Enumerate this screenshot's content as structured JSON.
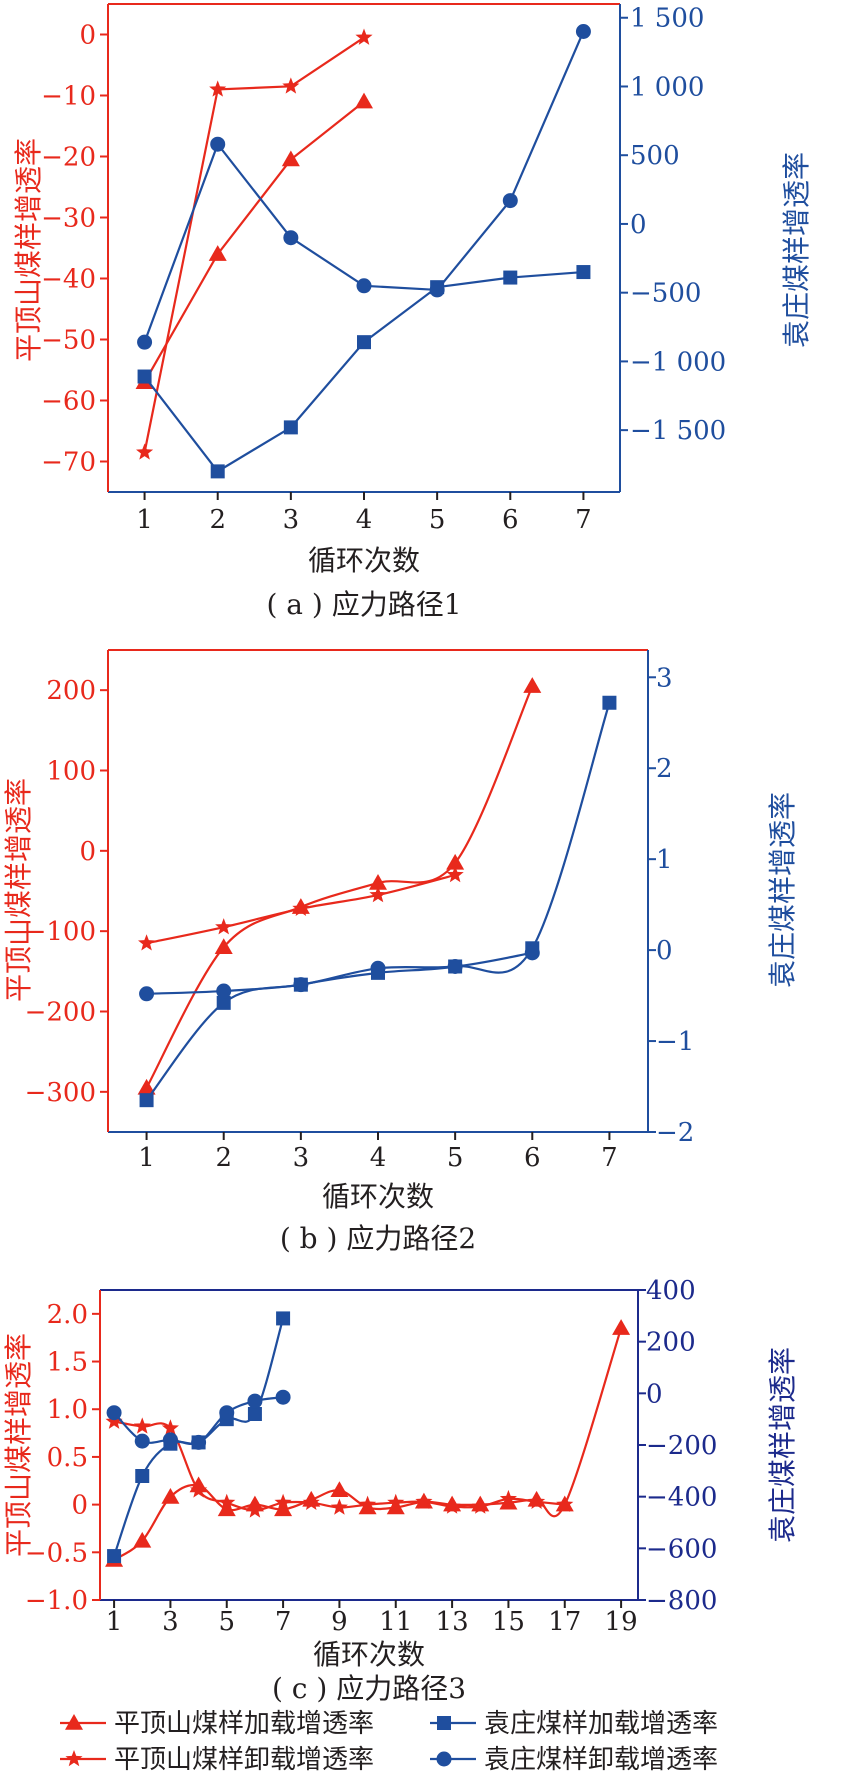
{
  "chart_data": [
    {
      "type": "line",
      "panel": "a",
      "caption": "( a ) 应力路径1",
      "xlabel": "循环次数",
      "ylabel_left": "平顶山煤样增透率",
      "ylabel_right": "袁庄煤样增透率",
      "x_ticks": [
        "1",
        "2",
        "3",
        "4",
        "5",
        "6",
        "7"
      ],
      "yleft_ticks": [
        "0",
        "−10",
        "−20",
        "−30",
        "−40",
        "−50",
        "−60",
        "−70"
      ],
      "yright_ticks": [
        "1 500",
        "1 000",
        "500",
        "0",
        "−500",
        "−1 000",
        "−1 500"
      ],
      "xlim": [
        0.5,
        7.5
      ],
      "ylim_left": [
        -75,
        5
      ],
      "ylim_right": [
        -1950,
        1600
      ],
      "series": [
        {
          "name": "平顶山煤样加载增透率",
          "axis": "left",
          "color": "#e8291c",
          "marker": "triangle",
          "x": [
            1,
            2,
            3,
            4
          ],
          "values": [
            -57,
            -36,
            -20.5,
            -11
          ]
        },
        {
          "name": "平顶山煤样卸载增透率",
          "axis": "left",
          "color": "#e8291c",
          "marker": "star",
          "x": [
            1,
            2,
            3,
            4
          ],
          "values": [
            -68.5,
            -9,
            -8.5,
            -0.5
          ]
        },
        {
          "name": "袁庄煤样加载增透率",
          "axis": "right",
          "color": "#1f4e9e",
          "marker": "square",
          "x": [
            1,
            2,
            3,
            4,
            5,
            6,
            7
          ],
          "values": [
            -1110,
            -1800,
            -1480,
            -860,
            -460,
            -390,
            -350
          ]
        },
        {
          "name": "袁庄煤样卸载增透率",
          "axis": "right",
          "color": "#1f4e9e",
          "marker": "circle",
          "x": [
            1,
            2,
            3,
            4,
            5,
            6,
            7
          ],
          "values": [
            -860,
            580,
            -100,
            -450,
            -480,
            170,
            1400
          ]
        }
      ]
    },
    {
      "type": "line",
      "panel": "b",
      "caption": "( b ) 应力路径2",
      "xlabel": "循环次数",
      "ylabel_left": "平顶山煤样增透率",
      "ylabel_right": "袁庄煤样增透率",
      "x_ticks": [
        "1",
        "2",
        "3",
        "4",
        "5",
        "6",
        "7"
      ],
      "yleft_ticks": [
        "200",
        "100",
        "0",
        "−100",
        "−200",
        "−300"
      ],
      "yright_ticks": [
        "3",
        "2",
        "1",
        "0",
        "−1",
        "−2"
      ],
      "xlim": [
        0.5,
        7.5
      ],
      "ylim_left": [
        -350,
        250
      ],
      "ylim_right": [
        -2,
        3.3
      ],
      "series": [
        {
          "name": "平顶山煤样加载增透率",
          "axis": "left",
          "color": "#e8291c",
          "marker": "triangle",
          "x": [
            1,
            2,
            3,
            4,
            5,
            6
          ],
          "values": [
            -295,
            -120,
            -70,
            -40,
            -15,
            205
          ]
        },
        {
          "name": "平顶山煤样卸载增透率",
          "axis": "left",
          "color": "#e8291c",
          "marker": "star",
          "x": [
            1,
            2,
            3,
            4,
            5
          ],
          "values": [
            -115,
            -95,
            -72,
            -55,
            -30
          ]
        },
        {
          "name": "袁庄煤样加载增透率",
          "axis": "right",
          "color": "#1f4e9e",
          "marker": "square",
          "x": [
            1,
            2,
            3,
            4,
            5,
            6,
            7
          ],
          "values": [
            -1.65,
            -0.58,
            -0.38,
            -0.25,
            -0.18,
            0.02,
            2.72
          ]
        },
        {
          "name": "袁庄煤样卸载增透率",
          "axis": "right",
          "color": "#1f4e9e",
          "marker": "circle",
          "x": [
            1,
            2,
            3,
            4,
            5,
            6
          ],
          "values": [
            -0.48,
            -0.45,
            -0.38,
            -0.2,
            -0.18,
            -0.03
          ]
        }
      ]
    },
    {
      "type": "line",
      "panel": "c",
      "caption": "( c ) 应力路径3",
      "xlabel": "循环次数",
      "ylabel_left": "平顶山煤样增透率",
      "ylabel_right": "袁庄煤样增透率",
      "x_ticks": [
        "1",
        "3",
        "5",
        "7",
        "9",
        "11",
        "13",
        "15",
        "17",
        "19"
      ],
      "yleft_ticks": [
        "2.0",
        "1.5",
        "1.0",
        "0.5",
        "0",
        "−0.5",
        "−1.0"
      ],
      "yright_ticks": [
        "400",
        "200",
        "0",
        "−200",
        "−400",
        "−600",
        "−800"
      ],
      "xlim": [
        0.5,
        19.6
      ],
      "ylim_left": [
        -1.0,
        2.25
      ],
      "ylim_right": [
        -800,
        400
      ],
      "series": [
        {
          "name": "平顶山煤样加载增透率",
          "axis": "left",
          "color": "#e8291c",
          "marker": "triangle",
          "x": [
            1,
            2,
            3,
            4,
            5,
            6,
            7,
            8,
            9,
            10,
            11,
            12,
            13,
            14,
            15,
            16,
            17,
            19
          ],
          "values": [
            -0.58,
            -0.38,
            0.08,
            0.2,
            -0.05,
            0.0,
            -0.05,
            0.05,
            0.15,
            -0.03,
            -0.03,
            0.03,
            0.0,
            0.0,
            0.02,
            0.05,
            0.0,
            1.85
          ]
        },
        {
          "name": "平顶山煤样卸载增透率",
          "axis": "left",
          "color": "#e8291c",
          "marker": "star",
          "x": [
            1,
            2,
            3,
            4,
            5,
            6,
            7,
            8,
            9,
            10,
            11,
            12,
            13,
            14,
            15,
            16,
            17
          ],
          "values": [
            0.87,
            0.82,
            0.8,
            0.15,
            0.02,
            -0.06,
            0.02,
            0.02,
            -0.03,
            0.0,
            0.02,
            0.03,
            -0.02,
            -0.02,
            0.06,
            0.03,
            0.0
          ]
        },
        {
          "name": "袁庄煤样加载增透率",
          "axis": "right",
          "color": "#1f4e9e",
          "marker": "square",
          "x": [
            1,
            2,
            3,
            4,
            5,
            6,
            7
          ],
          "values": [
            -630,
            -320,
            -195,
            -190,
            -100,
            -80,
            290
          ]
        },
        {
          "name": "袁庄煤样卸载增透率",
          "axis": "right",
          "color": "#1f4e9e",
          "marker": "circle",
          "x": [
            1,
            2,
            3,
            4,
            5,
            6,
            7
          ],
          "values": [
            -75,
            -185,
            -180,
            -190,
            -75,
            -30,
            -15
          ]
        }
      ]
    }
  ],
  "legend": [
    {
      "label": "平顶山煤样加载增透率",
      "color": "#e8291c",
      "marker": "triangle"
    },
    {
      "label": "袁庄煤样加载增透率",
      "color": "#1f4e9e",
      "marker": "square"
    },
    {
      "label": "平顶山煤样卸载增透率",
      "color": "#e8291c",
      "marker": "star"
    },
    {
      "label": "袁庄煤样卸载增透率",
      "color": "#1f4e9e",
      "marker": "circle"
    }
  ]
}
